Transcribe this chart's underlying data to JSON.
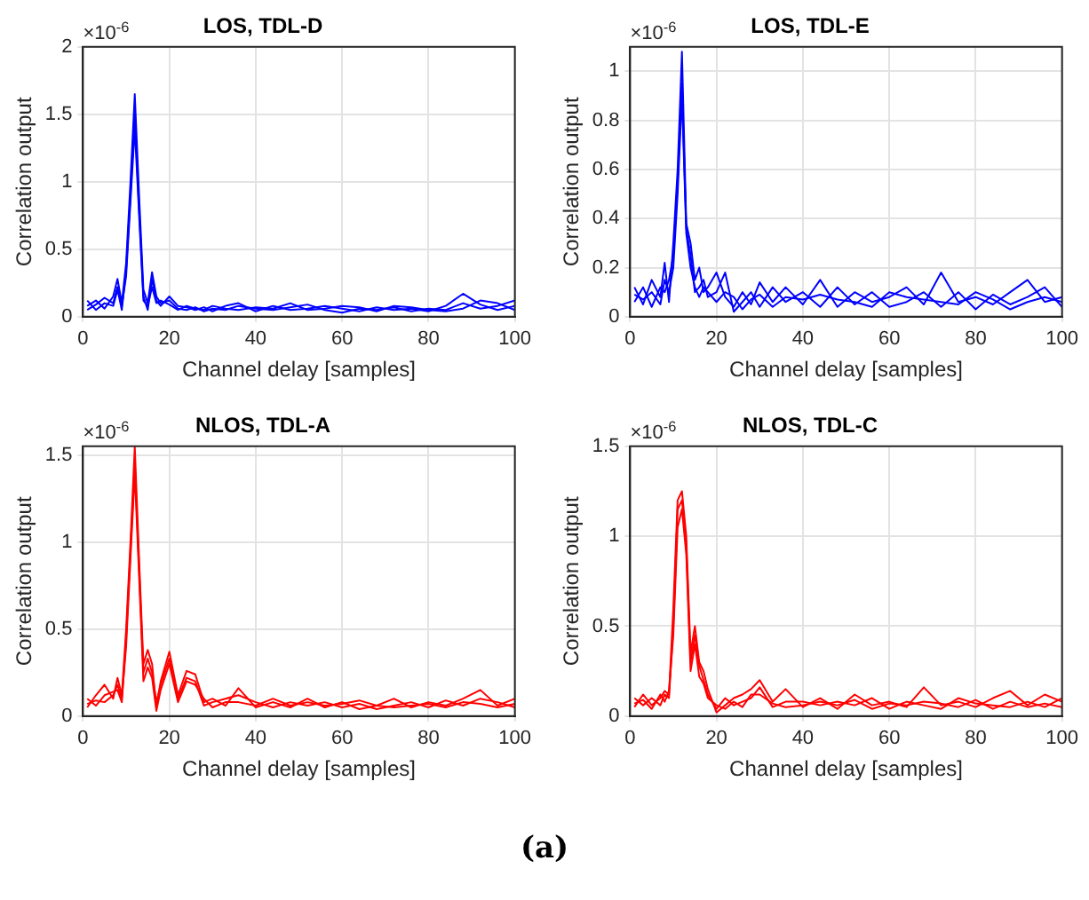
{
  "chart_data": [
    {
      "type": "line",
      "title": "LOS, TDL-D",
      "xlabel": "Channel delay [samples]",
      "ylabel": "Correlation output",
      "annotations": [
        "×10$^{-6}$"
      ],
      "xlim": [
        0,
        100
      ],
      "xticks": [
        0,
        20,
        40,
        60,
        80,
        100
      ],
      "ylim": [
        0,
        2
      ],
      "yticks": [
        0,
        0.5,
        1,
        1.5,
        2
      ],
      "grid": true,
      "legend": false,
      "marker": "none",
      "line_style": "solid",
      "x": [
        1,
        3,
        5,
        7,
        8,
        9,
        10,
        11,
        12,
        13,
        14,
        15,
        16,
        17,
        18,
        20,
        22,
        24,
        26,
        28,
        30,
        33,
        36,
        40,
        44,
        48,
        52,
        56,
        60,
        64,
        68,
        72,
        76,
        80,
        84,
        88,
        92,
        96,
        100
      ],
      "series": [
        {
          "color": "#0000ff",
          "values": [
            0.08,
            0.12,
            0.06,
            0.15,
            0.28,
            0.1,
            0.4,
            1.0,
            1.65,
            0.9,
            0.2,
            0.1,
            0.33,
            0.15,
            0.1,
            0.12,
            0.06,
            0.05,
            0.07,
            0.04,
            0.06,
            0.05,
            0.08,
            0.06,
            0.05,
            0.07,
            0.09,
            0.05,
            0.03,
            0.06,
            0.05,
            0.07,
            0.04,
            0.06,
            0.05,
            0.1,
            0.06,
            0.08,
            0.12
          ]
        },
        {
          "color": "#0000ff",
          "values": [
            0.12,
            0.05,
            0.1,
            0.08,
            0.2,
            0.05,
            0.35,
            0.9,
            1.5,
            0.8,
            0.15,
            0.05,
            0.28,
            0.12,
            0.08,
            0.15,
            0.08,
            0.07,
            0.05,
            0.07,
            0.04,
            0.08,
            0.1,
            0.04,
            0.08,
            0.05,
            0.06,
            0.08,
            0.06,
            0.04,
            0.07,
            0.05,
            0.06,
            0.04,
            0.08,
            0.17,
            0.09,
            0.05,
            0.08
          ]
        },
        {
          "color": "#0000ff",
          "values": [
            0.05,
            0.09,
            0.14,
            0.1,
            0.22,
            0.08,
            0.3,
            0.85,
            1.4,
            0.75,
            0.12,
            0.08,
            0.22,
            0.1,
            0.12,
            0.09,
            0.05,
            0.08,
            0.06,
            0.05,
            0.08,
            0.06,
            0.05,
            0.07,
            0.06,
            0.1,
            0.05,
            0.06,
            0.08,
            0.07,
            0.04,
            0.08,
            0.07,
            0.05,
            0.04,
            0.06,
            0.12,
            0.1,
            0.05
          ]
        }
      ]
    },
    {
      "type": "line",
      "title": "LOS, TDL-E",
      "xlabel": "Channel delay [samples]",
      "ylabel": "Correlation output",
      "annotations": [
        "×10$^{-6}$"
      ],
      "xlim": [
        0,
        100
      ],
      "xticks": [
        0,
        20,
        40,
        60,
        80,
        100
      ],
      "ylim": [
        0,
        1.1
      ],
      "yticks": [
        0,
        0.2,
        0.4,
        0.6,
        0.8,
        1
      ],
      "grid": true,
      "legend": false,
      "marker": "none",
      "line_style": "solid",
      "x": [
        1,
        3,
        5,
        7,
        8,
        9,
        10,
        11,
        12,
        13,
        14,
        15,
        16,
        17,
        18,
        20,
        22,
        24,
        26,
        28,
        30,
        33,
        36,
        40,
        44,
        48,
        52,
        56,
        60,
        64,
        68,
        72,
        76,
        80,
        84,
        88,
        92,
        96,
        100
      ],
      "series": [
        {
          "color": "#0000ff",
          "values": [
            0.12,
            0.05,
            0.15,
            0.08,
            0.22,
            0.06,
            0.3,
            0.6,
            1.08,
            0.38,
            0.3,
            0.15,
            0.2,
            0.1,
            0.12,
            0.18,
            0.08,
            0.04,
            0.1,
            0.05,
            0.14,
            0.06,
            0.12,
            0.05,
            0.15,
            0.04,
            0.1,
            0.06,
            0.08,
            0.12,
            0.05,
            0.18,
            0.06,
            0.08,
            0.05,
            0.1,
            0.15,
            0.06,
            0.08
          ]
        },
        {
          "color": "#0000ff",
          "values": [
            0.06,
            0.12,
            0.04,
            0.12,
            0.1,
            0.15,
            0.25,
            0.55,
            0.95,
            0.36,
            0.25,
            0.1,
            0.12,
            0.15,
            0.08,
            0.1,
            0.18,
            0.02,
            0.06,
            0.1,
            0.04,
            0.12,
            0.06,
            0.1,
            0.04,
            0.12,
            0.05,
            0.1,
            0.04,
            0.06,
            0.1,
            0.04,
            0.1,
            0.03,
            0.09,
            0.05,
            0.08,
            0.12,
            0.04
          ]
        },
        {
          "color": "#0000ff",
          "values": [
            0.09,
            0.07,
            0.1,
            0.05,
            0.15,
            0.1,
            0.2,
            0.5,
            0.9,
            0.34,
            0.2,
            0.12,
            0.08,
            0.12,
            0.1,
            0.06,
            0.1,
            0.08,
            0.03,
            0.07,
            0.09,
            0.04,
            0.08,
            0.07,
            0.09,
            0.07,
            0.06,
            0.04,
            0.1,
            0.08,
            0.07,
            0.06,
            0.05,
            0.1,
            0.07,
            0.03,
            0.06,
            0.08,
            0.06
          ]
        }
      ]
    },
    {
      "type": "line",
      "title": "NLOS, TDL-A",
      "xlabel": "Channel delay [samples]",
      "ylabel": "Correlation output",
      "annotations": [
        "×10$^{-6}$"
      ],
      "xlim": [
        0,
        100
      ],
      "xticks": [
        0,
        20,
        40,
        60,
        80,
        100
      ],
      "ylim": [
        0,
        1.55
      ],
      "yticks": [
        0,
        0.5,
        1,
        1.5
      ],
      "grid": true,
      "legend": false,
      "marker": "none",
      "line_style": "solid",
      "x": [
        1,
        3,
        5,
        7,
        8,
        9,
        10,
        11,
        12,
        13,
        14,
        15,
        16,
        17,
        18,
        20,
        22,
        24,
        26,
        28,
        30,
        33,
        36,
        40,
        44,
        48,
        52,
        56,
        60,
        64,
        68,
        72,
        76,
        80,
        84,
        88,
        92,
        96,
        100
      ],
      "series": [
        {
          "color": "#ff0000",
          "values": [
            0.05,
            0.12,
            0.18,
            0.1,
            0.22,
            0.12,
            0.5,
            1.0,
            1.55,
            0.9,
            0.3,
            0.38,
            0.3,
            0.05,
            0.2,
            0.37,
            0.12,
            0.26,
            0.24,
            0.08,
            0.1,
            0.06,
            0.16,
            0.05,
            0.08,
            0.05,
            0.1,
            0.05,
            0.08,
            0.04,
            0.06,
            0.1,
            0.05,
            0.08,
            0.06,
            0.1,
            0.15,
            0.06,
            0.1
          ]
        },
        {
          "color": "#ff0000",
          "values": [
            0.1,
            0.06,
            0.12,
            0.14,
            0.15,
            0.08,
            0.45,
            0.95,
            1.45,
            0.85,
            0.25,
            0.33,
            0.25,
            0.08,
            0.18,
            0.33,
            0.1,
            0.22,
            0.2,
            0.06,
            0.08,
            0.1,
            0.12,
            0.08,
            0.05,
            0.08,
            0.06,
            0.08,
            0.05,
            0.07,
            0.04,
            0.06,
            0.08,
            0.05,
            0.09,
            0.06,
            0.1,
            0.08,
            0.05
          ]
        },
        {
          "color": "#ff0000",
          "values": [
            0.07,
            0.09,
            0.08,
            0.12,
            0.18,
            0.1,
            0.4,
            0.9,
            1.4,
            0.8,
            0.2,
            0.28,
            0.22,
            0.03,
            0.15,
            0.3,
            0.08,
            0.2,
            0.18,
            0.1,
            0.05,
            0.08,
            0.08,
            0.06,
            0.1,
            0.06,
            0.08,
            0.06,
            0.07,
            0.09,
            0.06,
            0.05,
            0.06,
            0.07,
            0.05,
            0.08,
            0.07,
            0.05,
            0.07
          ]
        }
      ]
    },
    {
      "type": "line",
      "title": "NLOS, TDL-C",
      "xlabel": "Channel delay [samples]",
      "ylabel": "Correlation output",
      "annotations": [
        "×10$^{-6}$",
        "(a)"
      ],
      "xlim": [
        0,
        100
      ],
      "xticks": [
        0,
        20,
        40,
        60,
        80,
        100
      ],
      "ylim": [
        0,
        1.5
      ],
      "yticks": [
        0,
        0.5,
        1,
        1.5
      ],
      "grid": true,
      "legend": false,
      "marker": "none",
      "line_style": "solid",
      "x": [
        1,
        3,
        5,
        7,
        8,
        9,
        10,
        11,
        12,
        13,
        14,
        15,
        16,
        17,
        18,
        20,
        22,
        24,
        26,
        28,
        30,
        33,
        36,
        40,
        44,
        48,
        52,
        56,
        60,
        64,
        68,
        72,
        76,
        80,
        84,
        88,
        92,
        96,
        100
      ],
      "series": [
        {
          "color": "#ff0000",
          "values": [
            0.05,
            0.12,
            0.06,
            0.1,
            0.14,
            0.12,
            0.6,
            1.2,
            1.25,
            1.0,
            0.35,
            0.5,
            0.3,
            0.25,
            0.15,
            0.02,
            0.06,
            0.1,
            0.12,
            0.15,
            0.2,
            0.08,
            0.15,
            0.05,
            0.1,
            0.04,
            0.12,
            0.06,
            0.08,
            0.05,
            0.16,
            0.06,
            0.08,
            0.05,
            0.1,
            0.14,
            0.06,
            0.12,
            0.08
          ]
        },
        {
          "color": "#ff0000",
          "values": [
            0.1,
            0.06,
            0.1,
            0.06,
            0.12,
            0.1,
            0.5,
            1.15,
            1.2,
            0.95,
            0.3,
            0.45,
            0.28,
            0.2,
            0.12,
            0.04,
            0.1,
            0.06,
            0.08,
            0.1,
            0.16,
            0.05,
            0.08,
            0.08,
            0.06,
            0.08,
            0.06,
            0.1,
            0.04,
            0.08,
            0.06,
            0.04,
            0.1,
            0.07,
            0.06,
            0.05,
            0.08,
            0.05,
            0.1
          ]
        },
        {
          "color": "#ff0000",
          "values": [
            0.07,
            0.09,
            0.04,
            0.12,
            0.08,
            0.14,
            0.45,
            1.05,
            1.15,
            0.9,
            0.25,
            0.4,
            0.22,
            0.18,
            0.1,
            0.06,
            0.04,
            0.08,
            0.05,
            0.12,
            0.12,
            0.07,
            0.05,
            0.06,
            0.08,
            0.06,
            0.09,
            0.04,
            0.07,
            0.06,
            0.08,
            0.07,
            0.05,
            0.09,
            0.04,
            0.08,
            0.05,
            0.07,
            0.05
          ]
        }
      ]
    }
  ]
}
